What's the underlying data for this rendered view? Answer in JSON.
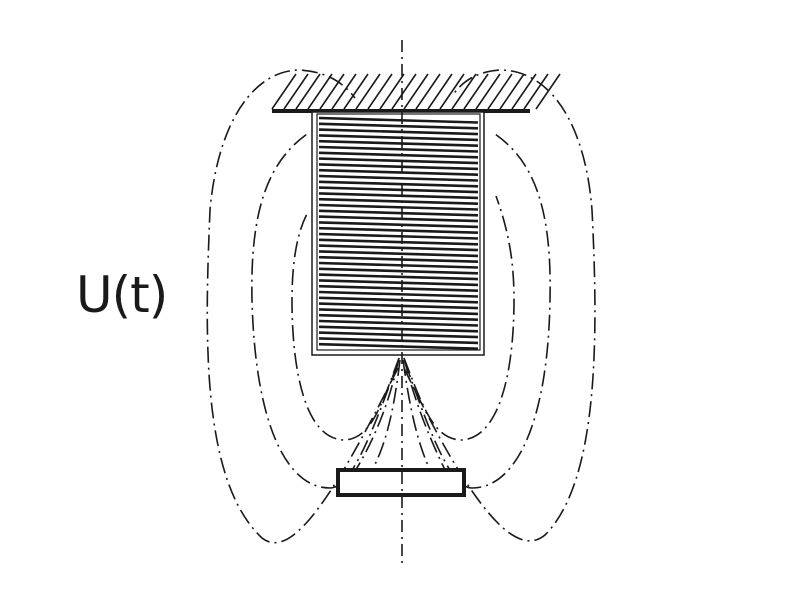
{
  "labels": {
    "voltage": "U(t)"
  },
  "colors": {
    "line": "#1a1a1a",
    "background": "#ffffff"
  },
  "elements": {
    "mount": "hatched-fixed-support",
    "coil": "wound-coil",
    "axis": "symmetry-axis",
    "plate": "armature-plate",
    "field": "magnetic-field-lines"
  }
}
